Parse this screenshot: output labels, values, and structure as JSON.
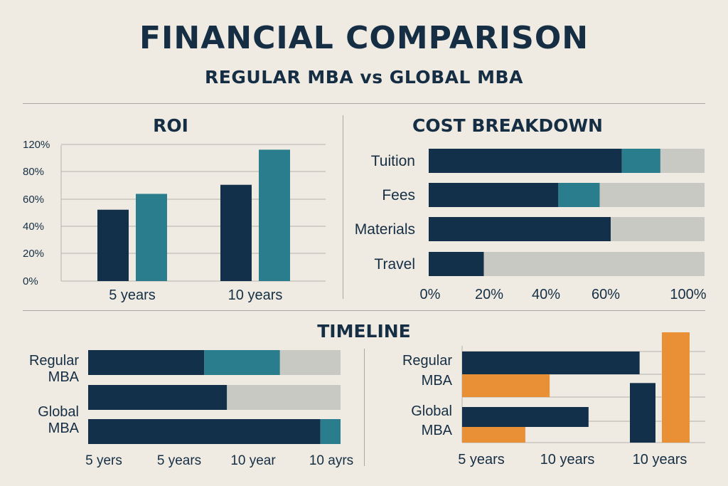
{
  "header": {
    "title": "FINANCIAL COMPARISON",
    "subtitle": "REGULAR MBA vs GLOBAL MBA"
  },
  "colors": {
    "navy": "#13304a",
    "teal": "#2a7d8c",
    "gray": "#c9c9c3",
    "orange": "#e98f35",
    "grid": "#b3b3ad"
  },
  "chart_data": [
    {
      "type": "bar",
      "title": "ROI",
      "categories": [
        "5 years",
        "10 years"
      ],
      "series": [
        {
          "values": [
            63,
            85
          ]
        },
        {
          "values": [
            77,
            116
          ]
        }
      ],
      "y_ticks": [
        "0%",
        "20%",
        "40%",
        "60%",
        "80%",
        "120%"
      ],
      "ylim": [
        0,
        120
      ],
      "grid": true
    },
    {
      "type": "bar",
      "orientation": "horizontal",
      "stacked": true,
      "title": "COST BREAKDOWN",
      "categories": [
        "Tuition",
        "Fees",
        "Materials",
        "Travel"
      ],
      "series": [
        {
          "values": [
            70,
            47,
            66,
            20
          ]
        },
        {
          "values": [
            14,
            15,
            0,
            0
          ]
        },
        {
          "values": [
            16,
            38,
            34,
            80
          ]
        }
      ],
      "x_ticks": [
        "0%",
        "20%",
        "40%",
        "60%",
        "100%"
      ],
      "xlim": [
        0,
        100
      ]
    },
    {
      "type": "bar",
      "orientation": "horizontal",
      "stacked": true,
      "title": "TIMELINE",
      "categories": [
        "Regular MBA",
        "Global MBA"
      ],
      "rows": [
        {
          "category": "Regular MBA",
          "segments": [
            46,
            30,
            24
          ]
        },
        {
          "category": "Regular MBA",
          "segments": [
            55,
            45
          ]
        },
        {
          "category": "Global MBA",
          "segments": [
            92,
            8
          ]
        }
      ],
      "x_ticks": [
        "5 yers",
        "5 years",
        "10 year",
        "10 ayrs"
      ]
    },
    {
      "type": "bar",
      "orientation": "mixed",
      "categories": [
        "Regular MBA",
        "Global MBA"
      ],
      "x_ticks": [
        "5 years",
        "10 years",
        "10 years"
      ],
      "horizontal_bars": [
        {
          "category": "Regular MBA",
          "color": "navy",
          "value": 73
        },
        {
          "category": "Regular MBA",
          "color": "orange",
          "value": 36
        },
        {
          "category": "Global MBA",
          "color": "navy",
          "value": 52
        },
        {
          "category": "Global MBA",
          "color": "orange",
          "value": 26
        }
      ],
      "vertical_bars": [
        {
          "color": "navy",
          "value": 54
        },
        {
          "color": "orange",
          "value": 100
        }
      ]
    }
  ]
}
